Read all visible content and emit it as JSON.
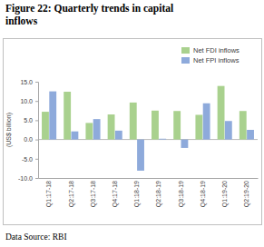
{
  "chart_data": {
    "type": "bar",
    "title": "Figure 22: Quarterly trends in capital inflows",
    "y_label": "(US$ billion)",
    "source": "Data Source: RBI",
    "categories": [
      "Q1:17-18",
      "Q2:17-18",
      "Q3:17-18",
      "Q4:17-18",
      "Q1:18-19",
      "Q2:18-19",
      "Q3:18-19",
      "Q4:18-19",
      "Q1:19-20",
      "Q2:19-20"
    ],
    "series": [
      {
        "name": "Net FDI inflows",
        "color": "#a9d18e",
        "values": [
          7.2,
          12.4,
          4.3,
          6.5,
          9.6,
          7.5,
          7.4,
          6.4,
          13.9,
          7.4
        ]
      },
      {
        "name": "Net FPI inflows",
        "color": "#8eaadb",
        "values": [
          12.5,
          2.1,
          5.3,
          2.3,
          -8.1,
          0.2,
          -2.2,
          9.4,
          4.8,
          2.5
        ]
      }
    ],
    "ylim": [
      -10,
      15
    ],
    "yticks": [
      {
        "value": -10,
        "label": "-10.0"
      },
      {
        "value": -5,
        "label": "-5.0"
      },
      {
        "value": 0,
        "label": "0.0"
      },
      {
        "value": 5,
        "label": "5.0"
      },
      {
        "value": 10,
        "label": "10.0"
      },
      {
        "value": 15,
        "label": "15.0"
      }
    ],
    "grid": false,
    "legend": "top-right"
  }
}
